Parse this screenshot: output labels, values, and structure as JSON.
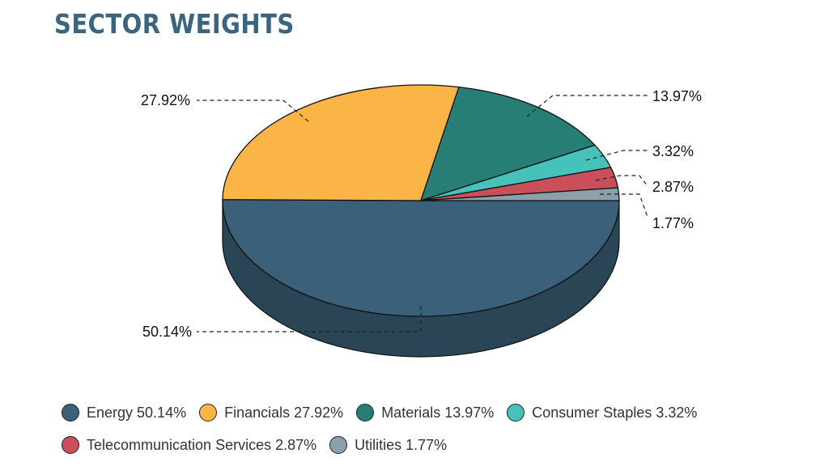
{
  "chart_data": {
    "type": "pie",
    "title": "SECTOR WEIGHTS",
    "style": "3d",
    "legend_position": "bottom",
    "slices": [
      {
        "label": "Energy",
        "value": 50.14,
        "value_label": "50.14%",
        "legend": "Energy 50.14%",
        "color": "#3a6179",
        "side_color": "#2a4556"
      },
      {
        "label": "Financials",
        "value": 27.92,
        "value_label": "27.92%",
        "legend": "Financials 27.92%",
        "color": "#fbb546",
        "side_color": "#c48a2e"
      },
      {
        "label": "Materials",
        "value": 13.97,
        "value_label": "13.97%",
        "legend": "Materials 13.97%",
        "color": "#277e74",
        "side_color": "#1c5c55"
      },
      {
        "label": "Consumer Staples",
        "value": 3.32,
        "value_label": "3.32%",
        "legend": "Consumer Staples 3.32%",
        "color": "#47c2bb",
        "side_color": "#329089"
      },
      {
        "label": "Telecommunication Services",
        "value": 2.87,
        "value_label": "2.87%",
        "legend": "Telecommunication Services 2.87%",
        "color": "#c9505a",
        "side_color": "#983c44"
      },
      {
        "label": "Utilities",
        "value": 1.77,
        "value_label": "1.77%",
        "legend": "Utilities 1.77%",
        "color": "#8aa0ab",
        "side_color": "#687c86"
      }
    ]
  }
}
